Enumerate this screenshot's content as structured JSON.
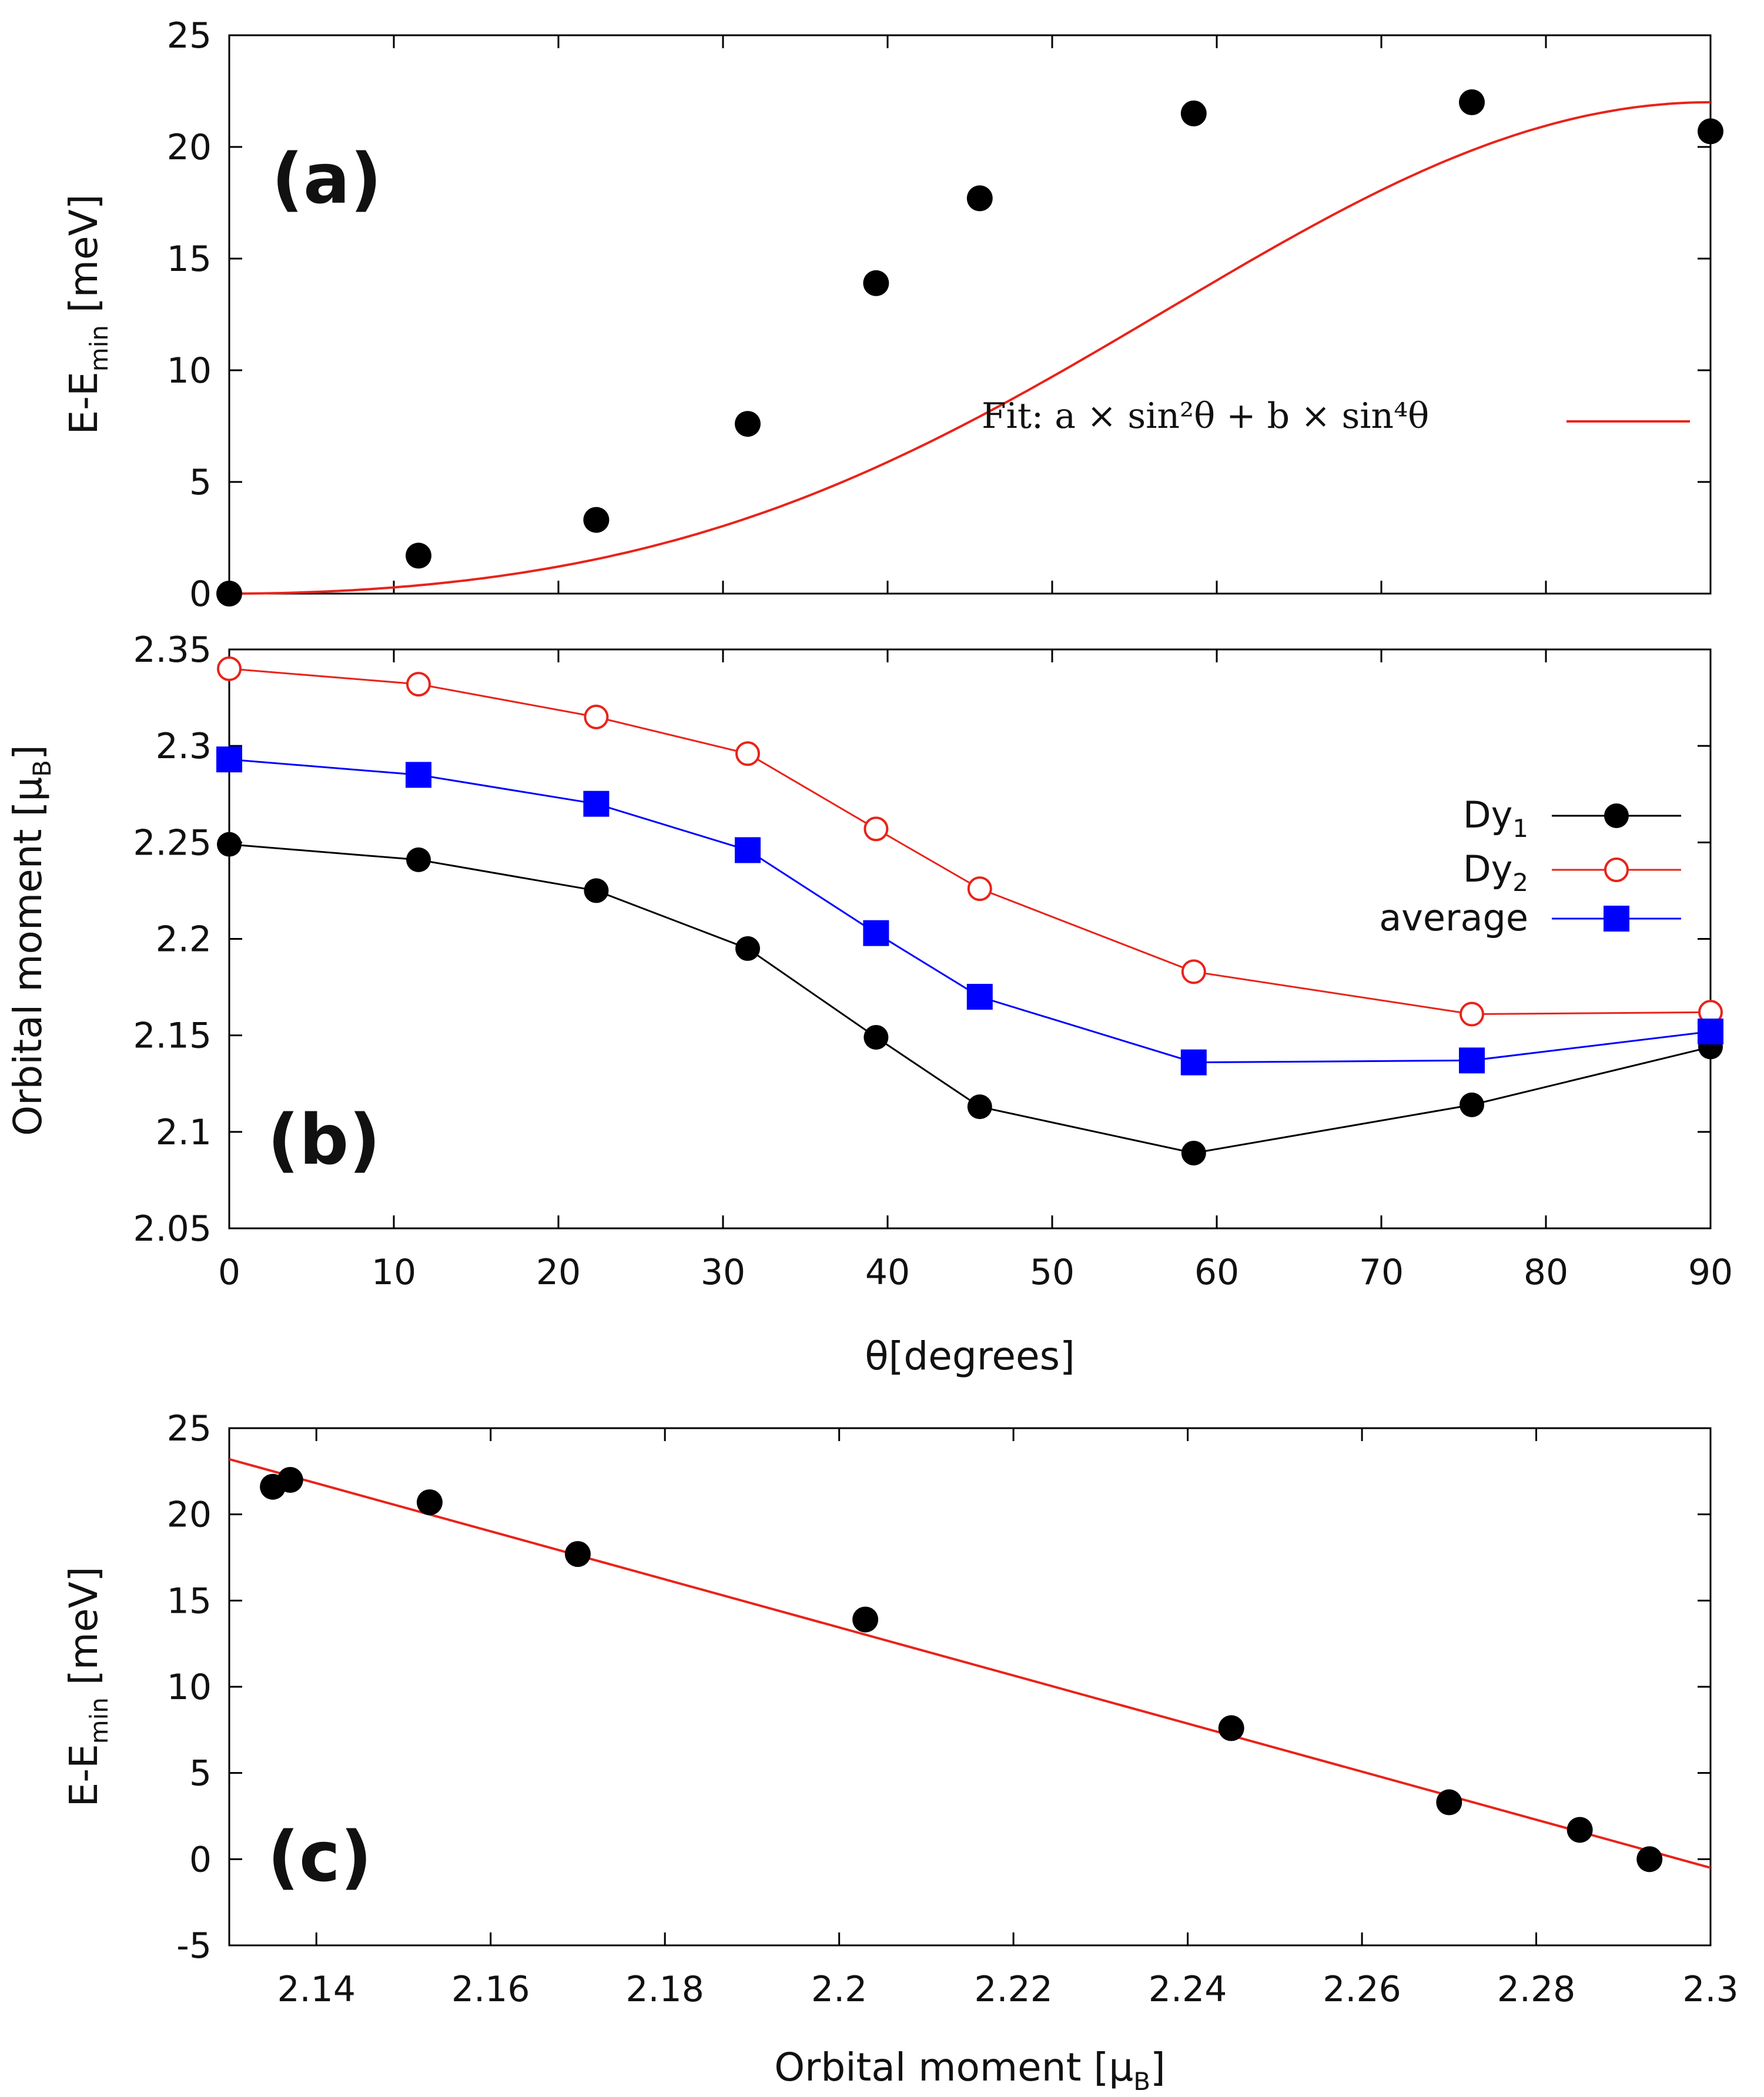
{
  "chart_data": [
    {
      "id": "a",
      "type": "scatter",
      "panel_label": "(a)",
      "ylabel_main": "E-E",
      "ylabel_sub": "min",
      "ylabel_unit": " [meV]",
      "ylim": [
        0,
        25
      ],
      "yticks": [
        0,
        5,
        10,
        15,
        20,
        25
      ],
      "xlim": [
        0,
        90
      ],
      "x": [
        0,
        11.5,
        22.3,
        31.5,
        39.3,
        45.6,
        58.6,
        75.5,
        90
      ],
      "y": [
        0,
        1.7,
        3.3,
        7.6,
        13.9,
        17.7,
        21.5,
        22.0,
        20.7
      ],
      "fit": {
        "label": "Fit: a × sin²θ + b × sin⁴θ",
        "a": 8.8,
        "b": 13.2,
        "color": "#e8231a"
      }
    },
    {
      "id": "b",
      "type": "line",
      "panel_label": "(b)",
      "ylabel": "Orbital moment [μ",
      "ylabel_sub": "B",
      "ylabel_close": "]",
      "xlabel": "θ[degrees]",
      "ylim": [
        2.05,
        2.35
      ],
      "yticks": [
        "2.05",
        "2.1",
        "2.15",
        "2.2",
        "2.25",
        "2.3",
        "2.35"
      ],
      "xlim": [
        0,
        90
      ],
      "xticks": [
        0,
        10,
        20,
        30,
        40,
        50,
        60,
        70,
        80,
        90
      ],
      "x": [
        0,
        11.5,
        22.3,
        31.5,
        39.3,
        45.6,
        58.6,
        75.5,
        90
      ],
      "series": [
        {
          "name": "Dy",
          "sub": "1",
          "color": "#000000",
          "marker": "filled-circle",
          "values": [
            2.249,
            2.241,
            2.225,
            2.195,
            2.149,
            2.113,
            2.089,
            2.114,
            2.144
          ]
        },
        {
          "name": "Dy",
          "sub": "2",
          "color": "#e8231a",
          "marker": "open-circle",
          "values": [
            2.34,
            2.332,
            2.315,
            2.296,
            2.257,
            2.226,
            2.183,
            2.161,
            2.162
          ]
        },
        {
          "name": "average",
          "sub": "",
          "color": "#0000ff",
          "marker": "filled-square",
          "values": [
            2.293,
            2.285,
            2.27,
            2.246,
            2.203,
            2.17,
            2.136,
            2.137,
            2.152
          ]
        }
      ]
    },
    {
      "id": "c",
      "type": "scatter",
      "panel_label": "(c)",
      "ylabel_main": "E-E",
      "ylabel_sub": "min",
      "ylabel_unit": " [meV]",
      "xlabel": "Orbital moment [μ",
      "xlabel_sub": "B",
      "xlabel_close": "]",
      "ylim": [
        -5,
        25
      ],
      "yticks": [
        -5,
        0,
        5,
        10,
        15,
        20,
        25
      ],
      "xlim": [
        2.13,
        2.3
      ],
      "xticks": [
        "2.14",
        "2.16",
        "2.18",
        "2.2",
        "2.22",
        "2.24",
        "2.26",
        "2.28",
        "2.3"
      ],
      "x": [
        2.293,
        2.285,
        2.27,
        2.245,
        2.203,
        2.17,
        2.153,
        2.137,
        2.135
      ],
      "y": [
        0,
        1.7,
        3.3,
        7.6,
        13.9,
        17.7,
        20.7,
        22.0,
        21.6
      ],
      "fit_line": {
        "x": [
          2.13,
          2.3
        ],
        "y": [
          23.2,
          -0.5
        ],
        "color": "#e8231a"
      }
    }
  ]
}
